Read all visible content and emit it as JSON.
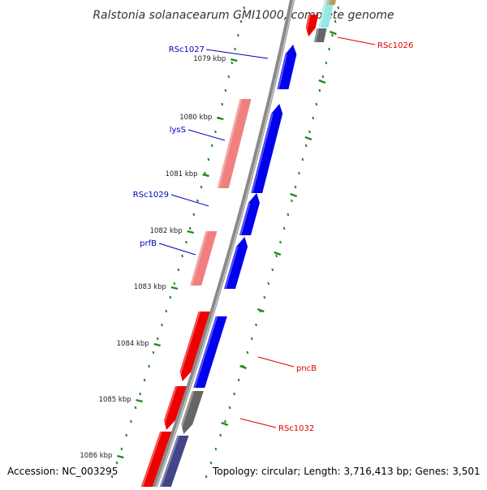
{
  "title": "Ralstonia solanacearum GMI1000, complete genome",
  "footer": {
    "accession": "Accession: NC_003295",
    "summary": "Topology: circular; Length: 3,716,413 bp; Genes: 3,501"
  },
  "colors": {
    "backbone": "#8a8a8a",
    "tick": "#1f8a1f",
    "cds_forward": "#0000ee",
    "cds_reverse": "#ee0000",
    "rna": "#f08080",
    "pseudo": "#666666",
    "label_forward": "#0000bb",
    "label_reverse": "#dd0000"
  },
  "scale_labels": [
    {
      "kbp": 1079,
      "text": "1079 kbp"
    },
    {
      "kbp": 1080,
      "text": "1080 kbp"
    },
    {
      "kbp": 1081,
      "text": "1081 kbp"
    },
    {
      "kbp": 1082,
      "text": "1082 kbp"
    },
    {
      "kbp": 1083,
      "text": "1083 kbp"
    },
    {
      "kbp": 1084,
      "text": "1084 kbp"
    },
    {
      "kbp": 1085,
      "text": "1085 kbp"
    },
    {
      "kbp": 1086,
      "text": "1086 kbp"
    }
  ],
  "gene_labels": [
    {
      "name": "RSc1027",
      "strand": "forward"
    },
    {
      "name": "lysS",
      "strand": "forward"
    },
    {
      "name": "RSc1029",
      "strand": "forward"
    },
    {
      "name": "prfB",
      "strand": "forward"
    },
    {
      "name": "RSc1026",
      "strand": "reverse"
    },
    {
      "name": "pncB",
      "strand": "reverse"
    },
    {
      "name": "RSc1032",
      "strand": "reverse"
    }
  ]
}
